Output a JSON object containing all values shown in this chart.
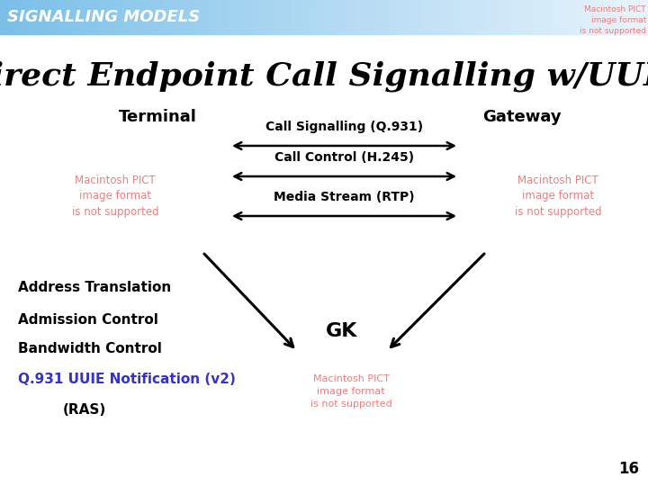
{
  "title": "Direct Endpoint Call Signalling w/UUIE",
  "header_text": "SIGNALLING MODELS",
  "pict_text": "Macintosh PICT\nimage format\nis not supported",
  "pict_color": "#e88080",
  "terminal_label": "Terminal",
  "gateway_label": "Gateway",
  "gk_label": "GK",
  "arrow1_label": "Call Signalling (Q.931)",
  "arrow2_label": "Call Control (H.245)",
  "arrow3_label": "Media Stream (RTP)",
  "left_list": [
    "Address Translation",
    "Admission Control",
    "Bandwidth Control"
  ],
  "q931_label": "Q.931 UUIE Notification (v2)",
  "q931_color": "#3333cc",
  "ras_label": "(RAS)",
  "page_number": "16",
  "bg_color": "#ffffff"
}
